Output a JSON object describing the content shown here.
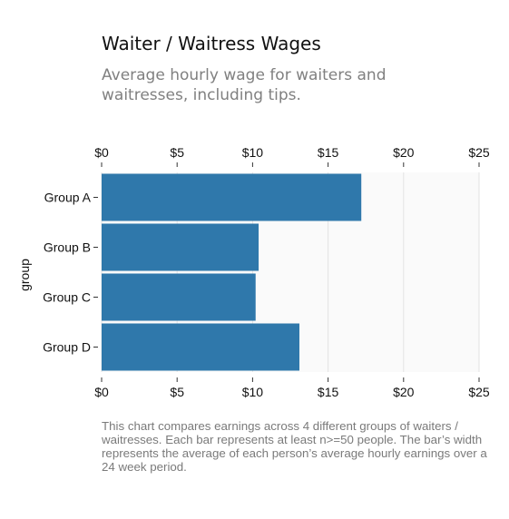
{
  "header": {
    "title": "Waiter / Waitress Wages",
    "subtitle": "Average hourly wage for waiters and waitresses, including tips."
  },
  "caption": "This chart compares earnings across 4 different groups of waiters / waitresses. Each bar represents at least n>=50 people. The bar’s width represents the average of each person’s average hourly earnings over a 24 week period.",
  "colors": {
    "bar": "#2f78ab",
    "panel": "#fafafa",
    "grid": "#e3e3e3"
  },
  "chart_data": {
    "type": "bar",
    "orientation": "horizontal",
    "title": "Waiter / Waitress Wages",
    "subtitle": "Average hourly wage for waiters and waitresses, including tips.",
    "categories": [
      "Group A",
      "Group B",
      "Group C",
      "Group D"
    ],
    "values": [
      17.2,
      10.4,
      10.2,
      13.1
    ],
    "xlabel": "",
    "ylabel": "group",
    "xlim": [
      0,
      25
    ],
    "x_ticks": [
      0,
      5,
      10,
      15,
      20,
      25
    ],
    "x_tick_labels": [
      "$0",
      "$5",
      "$10",
      "$15",
      "$20",
      "$25"
    ],
    "x_axis_positions": [
      "top",
      "bottom"
    ],
    "grid": true,
    "legend": "none"
  }
}
